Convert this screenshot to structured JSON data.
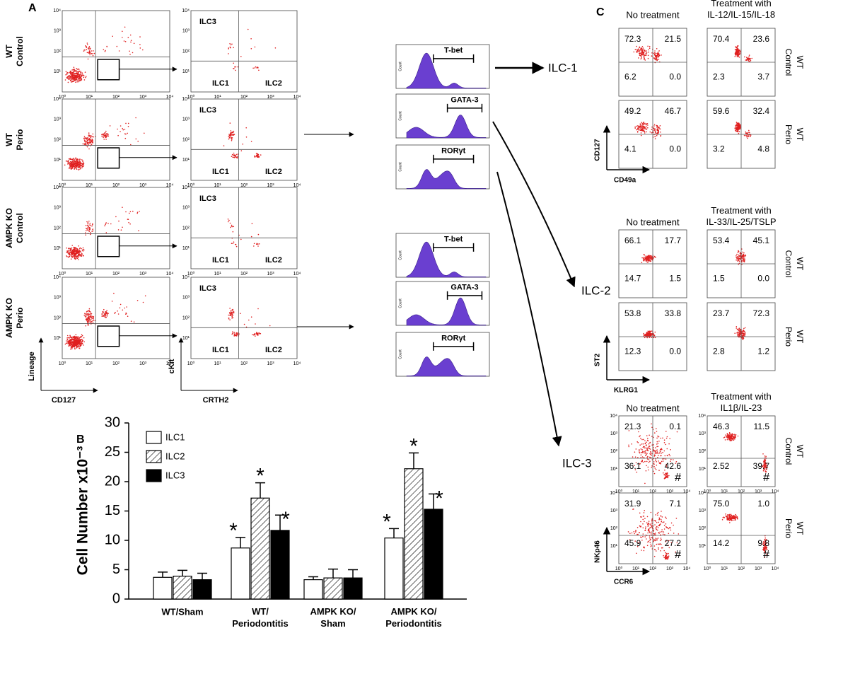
{
  "panel_a": {
    "label": "A",
    "row_labels": [
      [
        "WT",
        "Control"
      ],
      [
        "WT",
        "Perio"
      ],
      [
        "AMPK KO",
        "Control"
      ],
      [
        "AMPK KO",
        "Perio"
      ]
    ],
    "gate_labels": [
      "ILC3",
      "ILC1",
      "ILC2"
    ],
    "x_axis_1": "CD127",
    "y_axis_1": "Lineage",
    "x_axis_2": "CRTH2",
    "y_axis_2": "cKit",
    "axis_ticks": [
      "10⁰",
      "10¹",
      "10²",
      "10³",
      "10⁴"
    ],
    "histogram_axis": "Count",
    "histogram_labels": [
      "T-bet",
      "GATA-3",
      "RORγt"
    ],
    "outputs": [
      "ILC-1",
      "ILC-2",
      "ILC-3"
    ]
  },
  "panel_b": {
    "label": "B"
  },
  "chart_data": {
    "type": "bar",
    "ylabel": "Cell Number x10⁻³",
    "categories": [
      "WT/Sham",
      "WT/\nPeriodontitis",
      "AMPK KO/\nSham",
      "AMPK KO/\nPeriodontitis"
    ],
    "series": [
      {
        "name": "ILC1",
        "color": "#ffffff",
        "values": [
          3.7,
          8.7,
          3.3,
          10.4
        ],
        "errors": [
          0.9,
          1.8,
          0.5,
          1.6
        ],
        "annotations": [
          null,
          "*",
          null,
          "*"
        ]
      },
      {
        "name": "ILC2",
        "color": "#ffffff",
        "hatch": true,
        "values": [
          3.9,
          17.2,
          3.6,
          22.2
        ],
        "errors": [
          1.0,
          2.6,
          1.5,
          2.7
        ],
        "annotations": [
          null,
          "*",
          null,
          "*"
        ]
      },
      {
        "name": "ILC3",
        "color": "#000000",
        "values": [
          3.3,
          11.7,
          3.6,
          15.3
        ],
        "errors": [
          1.1,
          2.6,
          1.4,
          2.6
        ],
        "annotations": [
          null,
          "*",
          null,
          "*"
        ]
      }
    ],
    "ylim": [
      0,
      30
    ],
    "yticks": [
      0,
      5,
      10,
      15,
      20,
      25,
      30
    ],
    "legend": "top-left"
  },
  "panel_c": {
    "label": "C",
    "row_labels": [
      [
        "WT",
        "Control"
      ],
      [
        "WT",
        "Perio"
      ]
    ],
    "blocks": [
      {
        "headers": [
          "No treatment",
          "Treatment with\nIL-12/IL-15/IL-18"
        ],
        "y_axis": "CD127",
        "x_axis": "CD49a",
        "quadrants": [
          [
            [
              "72.3",
              "21.5",
              "6.2",
              "0.0"
            ],
            [
              "70.4",
              "23.6",
              "2.3",
              "3.7"
            ]
          ],
          [
            [
              "49.2",
              "46.7",
              "4.1",
              "0.0"
            ],
            [
              "59.6",
              "32.4",
              "3.2",
              "4.8"
            ]
          ]
        ]
      },
      {
        "headers": [
          "No treatment",
          "Treatment with\nIL-33/IL-25/TSLP"
        ],
        "y_axis": "ST2",
        "x_axis": "KLRG1",
        "quadrants": [
          [
            [
              "66.1",
              "17.7",
              "14.7",
              "1.5"
            ],
            [
              "53.4",
              "45.1",
              "1.5",
              "0.0"
            ]
          ],
          [
            [
              "53.8",
              "33.8",
              "12.3",
              "0.0"
            ],
            [
              "23.7",
              "72.3",
              "2.8",
              "1.2"
            ]
          ]
        ]
      },
      {
        "headers": [
          "No treatment",
          "Treatment with\nIL1β/IL-23"
        ],
        "y_axis": "NKp46",
        "x_axis": "CCR6",
        "marker": "#",
        "quadrants": [
          [
            [
              "21.3",
              "0.1",
              "36.1",
              "42.6"
            ],
            [
              "46.3",
              "11.5",
              "2.52",
              "39.7"
            ]
          ],
          [
            [
              "31.9",
              "7.1",
              "45.9",
              "27.2"
            ],
            [
              "75.0",
              "1.0",
              "14.2",
              "9.8"
            ]
          ]
        ]
      }
    ]
  }
}
